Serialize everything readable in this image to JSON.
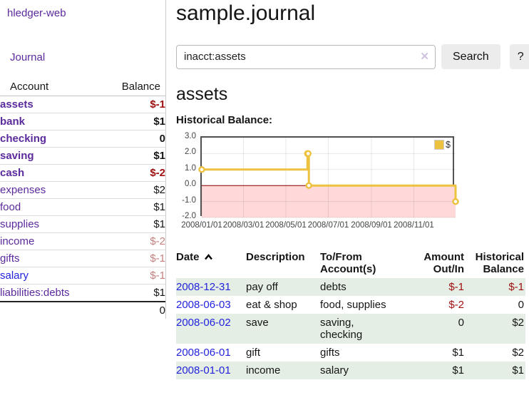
{
  "app": {
    "title": "hledger-web",
    "nav_journal": "Journal"
  },
  "sidebar": {
    "headers": {
      "account": "Account",
      "balance": "Balance"
    },
    "accounts": [
      {
        "name": "assets",
        "indent": 1,
        "bold": true,
        "balance": "$-1",
        "balance_style": "neg",
        "link_style": "purple"
      },
      {
        "name": "bank",
        "indent": 2,
        "bold": true,
        "balance": "$1",
        "balance_style": "pos",
        "link_style": "purple"
      },
      {
        "name": "checking",
        "indent": 3,
        "bold": true,
        "balance": "0",
        "balance_style": "pos",
        "link_style": "purple"
      },
      {
        "name": "saving",
        "indent": 3,
        "bold": true,
        "balance": "$1",
        "balance_style": "pos",
        "link_style": "purple"
      },
      {
        "name": "cash",
        "indent": 2,
        "bold": true,
        "balance": "$-2",
        "balance_style": "neg",
        "link_style": "purple"
      },
      {
        "name": "expenses",
        "indent": 1,
        "bold": false,
        "balance": "$2",
        "balance_style": "pos",
        "link_style": "purple"
      },
      {
        "name": "food",
        "indent": 2,
        "bold": false,
        "balance": "$1",
        "balance_style": "pos",
        "link_style": "purple"
      },
      {
        "name": "supplies",
        "indent": 2,
        "bold": false,
        "balance": "$1",
        "balance_style": "pos",
        "link_style": "purple"
      },
      {
        "name": "income",
        "indent": 1,
        "bold": false,
        "balance": "$-2",
        "balance_style": "neg_light",
        "link_style": "purple"
      },
      {
        "name": "gifts",
        "indent": 2,
        "bold": false,
        "balance": "$-1",
        "balance_style": "neg_light",
        "link_style": "purple"
      },
      {
        "name": "salary",
        "indent": 2,
        "bold": false,
        "balance": "$-1",
        "balance_style": "neg_light",
        "link_style": "blue"
      },
      {
        "name": "liabilities:debts",
        "indent": 1,
        "bold": false,
        "balance": "$1",
        "balance_style": "pos",
        "link_style": "purple"
      }
    ],
    "total": "0"
  },
  "main": {
    "title": "sample.journal",
    "search": {
      "value": "inacct:assets",
      "clear_icon": "✕",
      "button_label": "Search",
      "help_label": "?"
    },
    "account_heading": "assets"
  },
  "chart_data": {
    "type": "line",
    "style": "step",
    "title": "Historical Balance:",
    "series": [
      {
        "name": "$",
        "x": [
          "2008-01-01",
          "2008-06-01",
          "2008-06-02",
          "2008-06-03",
          "2008-12-31"
        ],
        "values": [
          1,
          2,
          2,
          0,
          -1
        ]
      }
    ],
    "xlim": [
      "2008-01-01",
      "2008-12-31"
    ],
    "ylim": [
      -2,
      3
    ],
    "yticks": [
      3,
      2,
      1,
      0,
      -1,
      -2
    ],
    "ytick_labels": [
      "3.0",
      "2.0",
      "1.0",
      "0.0",
      "-1.0",
      "-2.0"
    ],
    "xticks": [
      "2008-01-01",
      "2008-03-01",
      "2008-05-01",
      "2008-07-01",
      "2008-09-01",
      "2008-11-01"
    ],
    "xtick_labels": [
      "2008/01/01",
      "2008/03/01",
      "2008/05/01",
      "2008/07/01",
      "2008/09/01",
      "2008/11/01"
    ],
    "legend": {
      "label": "$",
      "position": "top-right"
    },
    "grid": true,
    "line_color": "#EDC240",
    "marker_fill": "#ffffff",
    "negative_region_color": "#FFD9D9",
    "zero_line_color": "#8B0000"
  },
  "table": {
    "headers": {
      "date": "Date",
      "description": "Description",
      "accounts": "To/From\nAccount(s)",
      "amount": "Amount\nOut/In",
      "balance": "Historical\nBalance"
    },
    "sort": {
      "column": "date",
      "direction": "ascending"
    },
    "rows": [
      {
        "date": "2008-12-31",
        "description": "pay off",
        "accounts": "debts",
        "amount": "$-1",
        "amount_neg": true,
        "balance": "$-1",
        "balance_neg": true
      },
      {
        "date": "2008-06-03",
        "description": "eat & shop",
        "accounts": "food, supplies",
        "amount": "$-2",
        "amount_neg": true,
        "balance": "0",
        "balance_neg": false
      },
      {
        "date": "2008-06-02",
        "description": "save",
        "accounts": "saving,\nchecking",
        "amount": "0",
        "amount_neg": false,
        "balance": "$2",
        "balance_neg": false
      },
      {
        "date": "2008-06-01",
        "description": "gift",
        "accounts": "gifts",
        "amount": "$1",
        "amount_neg": false,
        "balance": "$2",
        "balance_neg": false
      },
      {
        "date": "2008-01-01",
        "description": "income",
        "accounts": "salary",
        "amount": "$1",
        "amount_neg": false,
        "balance": "$1",
        "balance_neg": false
      }
    ]
  },
  "colors": {
    "link_purple": "#5b2a9d",
    "link_blue": "#2323dd",
    "negative": "#a01010",
    "negative_light": "#c58080",
    "row_stripe_green": "#e4eee4",
    "button_bg": "#ececec",
    "chart_line": "#EDC240",
    "chart_negative_region": "#FFD9D9",
    "chart_zero_line": "#8B0000",
    "chart_border": "#545454"
  }
}
